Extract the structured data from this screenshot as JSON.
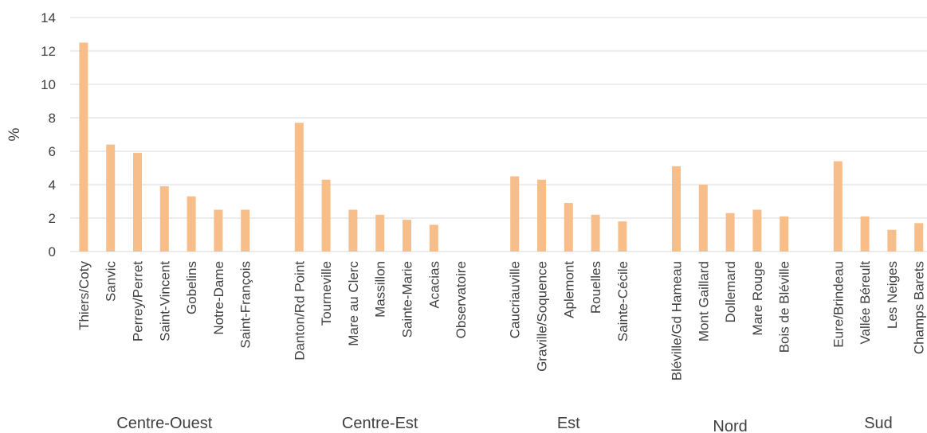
{
  "chart_data": {
    "type": "bar",
    "ylabel": "%",
    "ylim": [
      0,
      14
    ],
    "yticks": [
      0,
      2,
      4,
      6,
      8,
      10,
      12,
      14
    ],
    "grid": true,
    "bar_color": "#F8BE8A",
    "groups": [
      {
        "name": "Centre-Ouest",
        "categories": [
          "Thiers/Coty",
          "Sanvic",
          "Perrey/Perret",
          "Saint-Vincent",
          "Gobelins",
          "Notre-Dame",
          "Saint-François"
        ],
        "values": [
          12.5,
          6.4,
          5.9,
          3.9,
          3.3,
          2.5,
          2.5
        ]
      },
      {
        "name": "Centre-Est",
        "categories": [
          "Danton/Rd Point",
          "Tourneville",
          "Mare au Clerc",
          "Massillon",
          "Sainte-Marie",
          "Acacias",
          "Observatoire"
        ],
        "values": [
          7.7,
          4.3,
          2.5,
          2.2,
          1.9,
          1.6,
          0
        ]
      },
      {
        "name": "Est",
        "categories": [
          "Caucriauville",
          "Graville/Soquence",
          "Aplemont",
          "Rouelles",
          "Sainte-Cécile"
        ],
        "values": [
          4.5,
          4.3,
          2.9,
          2.2,
          1.8
        ]
      },
      {
        "name": "Nord",
        "categories": [
          "Bléville/Gd Hameau",
          "Mont Gaillard",
          "Dollemard",
          "Mare Rouge",
          "Bois de Bléville"
        ],
        "values": [
          5.1,
          4.0,
          2.3,
          2.5,
          2.1
        ]
      },
      {
        "name": "Sud",
        "categories": [
          "Eure/Brindeau",
          "Vallée Béreult",
          "Les Neiges",
          "Champs Barets"
        ],
        "values": [
          5.4,
          2.1,
          1.3,
          1.7
        ]
      }
    ]
  }
}
